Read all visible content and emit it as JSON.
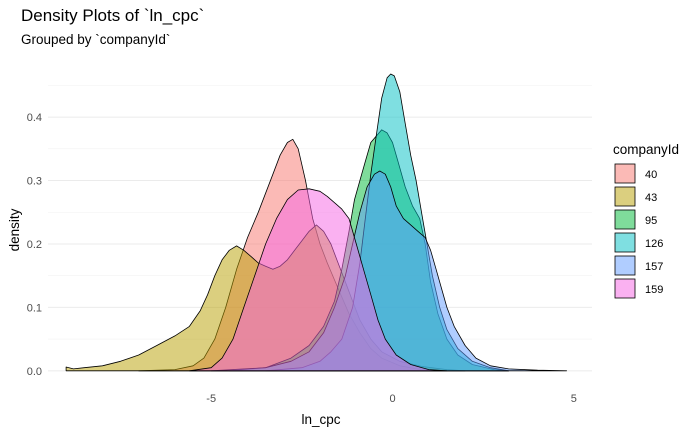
{
  "chart_data": {
    "type": "area",
    "title": "Density Plots of `ln_cpc`",
    "subtitle": "Grouped by `companyId`",
    "xlabel": "ln_cpc",
    "ylabel": "density",
    "xlim": [
      -9.5,
      5.5
    ],
    "ylim": [
      -0.005,
      0.49
    ],
    "x_ticks": [
      -5,
      0,
      5
    ],
    "y_ticks": [
      0.0,
      0.1,
      0.2,
      0.3,
      0.4
    ],
    "y_tick_labels": [
      "0.0",
      "0.1",
      "0.2",
      "0.3",
      "0.4"
    ],
    "grid": true,
    "legend": {
      "title": "companyId",
      "position": "right"
    },
    "fill_opacity": 0.5,
    "series": [
      {
        "name": "40",
        "color": "#F8766D",
        "points": [
          [
            -7.0,
            0
          ],
          [
            -6.0,
            0.002
          ],
          [
            -5.5,
            0.008
          ],
          [
            -5.2,
            0.02
          ],
          [
            -4.9,
            0.05
          ],
          [
            -4.6,
            0.1
          ],
          [
            -4.3,
            0.16
          ],
          [
            -4.0,
            0.21
          ],
          [
            -3.7,
            0.25
          ],
          [
            -3.5,
            0.28
          ],
          [
            -3.3,
            0.31
          ],
          [
            -3.1,
            0.34
          ],
          [
            -2.9,
            0.36
          ],
          [
            -2.75,
            0.365
          ],
          [
            -2.6,
            0.35
          ],
          [
            -2.4,
            0.3
          ],
          [
            -2.2,
            0.24
          ],
          [
            -2.0,
            0.2
          ],
          [
            -1.8,
            0.17
          ],
          [
            -1.5,
            0.13
          ],
          [
            -1.2,
            0.09
          ],
          [
            -0.9,
            0.06
          ],
          [
            -0.6,
            0.035
          ],
          [
            -0.3,
            0.02
          ],
          [
            0.2,
            0.008
          ],
          [
            0.8,
            0.002
          ],
          [
            1.3,
            0
          ]
        ]
      },
      {
        "name": "43",
        "color": "#B79F00",
        "points": [
          [
            -9.0,
            0.006
          ],
          [
            -8.8,
            0.003
          ],
          [
            -8.5,
            0.005
          ],
          [
            -8.0,
            0.008
          ],
          [
            -7.5,
            0.015
          ],
          [
            -7.0,
            0.025
          ],
          [
            -6.5,
            0.04
          ],
          [
            -6.0,
            0.055
          ],
          [
            -5.6,
            0.07
          ],
          [
            -5.3,
            0.095
          ],
          [
            -5.1,
            0.12
          ],
          [
            -4.9,
            0.15
          ],
          [
            -4.7,
            0.175
          ],
          [
            -4.5,
            0.19
          ],
          [
            -4.3,
            0.197
          ],
          [
            -4.1,
            0.19
          ],
          [
            -3.9,
            0.18
          ],
          [
            -3.7,
            0.17
          ],
          [
            -3.5,
            0.165
          ],
          [
            -3.3,
            0.16
          ],
          [
            -3.1,
            0.165
          ],
          [
            -2.9,
            0.175
          ],
          [
            -2.7,
            0.19
          ],
          [
            -2.5,
            0.205
          ],
          [
            -2.3,
            0.22
          ],
          [
            -2.1,
            0.23
          ],
          [
            -1.9,
            0.22
          ],
          [
            -1.7,
            0.2
          ],
          [
            -1.5,
            0.17
          ],
          [
            -1.3,
            0.14
          ],
          [
            -1.1,
            0.11
          ],
          [
            -0.9,
            0.08
          ],
          [
            -0.6,
            0.05
          ],
          [
            -0.3,
            0.03
          ],
          [
            0.2,
            0.015
          ],
          [
            0.8,
            0.007
          ],
          [
            1.5,
            0.002
          ],
          [
            2.0,
            0
          ]
        ]
      },
      {
        "name": "95",
        "color": "#00BA38",
        "points": [
          [
            -4.5,
            0
          ],
          [
            -3.5,
            0.005
          ],
          [
            -2.8,
            0.02
          ],
          [
            -2.3,
            0.04
          ],
          [
            -1.9,
            0.07
          ],
          [
            -1.6,
            0.11
          ],
          [
            -1.4,
            0.16
          ],
          [
            -1.2,
            0.22
          ],
          [
            -1.05,
            0.27
          ],
          [
            -0.9,
            0.3
          ],
          [
            -0.75,
            0.33
          ],
          [
            -0.6,
            0.36
          ],
          [
            -0.45,
            0.37
          ],
          [
            -0.3,
            0.38
          ],
          [
            -0.15,
            0.375
          ],
          [
            0.0,
            0.36
          ],
          [
            0.15,
            0.33
          ],
          [
            0.35,
            0.29
          ],
          [
            0.55,
            0.26
          ],
          [
            0.75,
            0.24
          ],
          [
            0.9,
            0.2
          ],
          [
            1.05,
            0.14
          ],
          [
            1.25,
            0.09
          ],
          [
            1.5,
            0.05
          ],
          [
            1.8,
            0.025
          ],
          [
            2.2,
            0.01
          ],
          [
            2.8,
            0.002
          ],
          [
            3.2,
            0
          ]
        ]
      },
      {
        "name": "126",
        "color": "#00BFC4",
        "points": [
          [
            -3.5,
            0
          ],
          [
            -2.5,
            0.005
          ],
          [
            -2.0,
            0.015
          ],
          [
            -1.7,
            0.03
          ],
          [
            -1.4,
            0.05
          ],
          [
            -1.1,
            0.1
          ],
          [
            -0.9,
            0.17
          ],
          [
            -0.75,
            0.24
          ],
          [
            -0.6,
            0.31
          ],
          [
            -0.45,
            0.37
          ],
          [
            -0.3,
            0.43
          ],
          [
            -0.15,
            0.462
          ],
          [
            -0.05,
            0.468
          ],
          [
            0.05,
            0.465
          ],
          [
            0.2,
            0.44
          ],
          [
            0.35,
            0.39
          ],
          [
            0.5,
            0.34
          ],
          [
            0.65,
            0.3
          ],
          [
            0.8,
            0.25
          ],
          [
            0.95,
            0.2
          ],
          [
            1.1,
            0.15
          ],
          [
            1.3,
            0.1
          ],
          [
            1.5,
            0.065
          ],
          [
            1.8,
            0.035
          ],
          [
            2.2,
            0.015
          ],
          [
            2.7,
            0.005
          ],
          [
            3.2,
            0
          ]
        ]
      },
      {
        "name": "157",
        "color": "#619CFF",
        "points": [
          [
            -5.0,
            0
          ],
          [
            -3.5,
            0.005
          ],
          [
            -2.8,
            0.015
          ],
          [
            -2.3,
            0.03
          ],
          [
            -1.9,
            0.06
          ],
          [
            -1.6,
            0.1
          ],
          [
            -1.3,
            0.15
          ],
          [
            -1.1,
            0.2
          ],
          [
            -0.9,
            0.25
          ],
          [
            -0.7,
            0.29
          ],
          [
            -0.5,
            0.31
          ],
          [
            -0.35,
            0.315
          ],
          [
            -0.2,
            0.31
          ],
          [
            -0.05,
            0.29
          ],
          [
            0.1,
            0.26
          ],
          [
            0.3,
            0.24
          ],
          [
            0.5,
            0.23
          ],
          [
            0.7,
            0.22
          ],
          [
            0.9,
            0.21
          ],
          [
            1.05,
            0.19
          ],
          [
            1.2,
            0.16
          ],
          [
            1.35,
            0.13
          ],
          [
            1.5,
            0.1
          ],
          [
            1.7,
            0.07
          ],
          [
            2.0,
            0.04
          ],
          [
            2.3,
            0.02
          ],
          [
            2.7,
            0.008
          ],
          [
            3.2,
            0.003
          ],
          [
            4.0,
            0.001
          ],
          [
            4.8,
            0
          ]
        ]
      },
      {
        "name": "159",
        "color": "#F564E3",
        "points": [
          [
            -5.6,
            0
          ],
          [
            -5.0,
            0.005
          ],
          [
            -4.7,
            0.02
          ],
          [
            -4.4,
            0.05
          ],
          [
            -4.1,
            0.1
          ],
          [
            -3.8,
            0.15
          ],
          [
            -3.5,
            0.2
          ],
          [
            -3.2,
            0.24
          ],
          [
            -2.9,
            0.27
          ],
          [
            -2.6,
            0.285
          ],
          [
            -2.3,
            0.287
          ],
          [
            -2.0,
            0.283
          ],
          [
            -1.8,
            0.275
          ],
          [
            -1.6,
            0.265
          ],
          [
            -1.4,
            0.255
          ],
          [
            -1.2,
            0.24
          ],
          [
            -1.0,
            0.2
          ],
          [
            -0.8,
            0.16
          ],
          [
            -0.6,
            0.12
          ],
          [
            -0.4,
            0.08
          ],
          [
            -0.2,
            0.05
          ],
          [
            0.1,
            0.025
          ],
          [
            0.5,
            0.01
          ],
          [
            1.0,
            0.002
          ],
          [
            1.5,
            0
          ]
        ]
      }
    ]
  }
}
